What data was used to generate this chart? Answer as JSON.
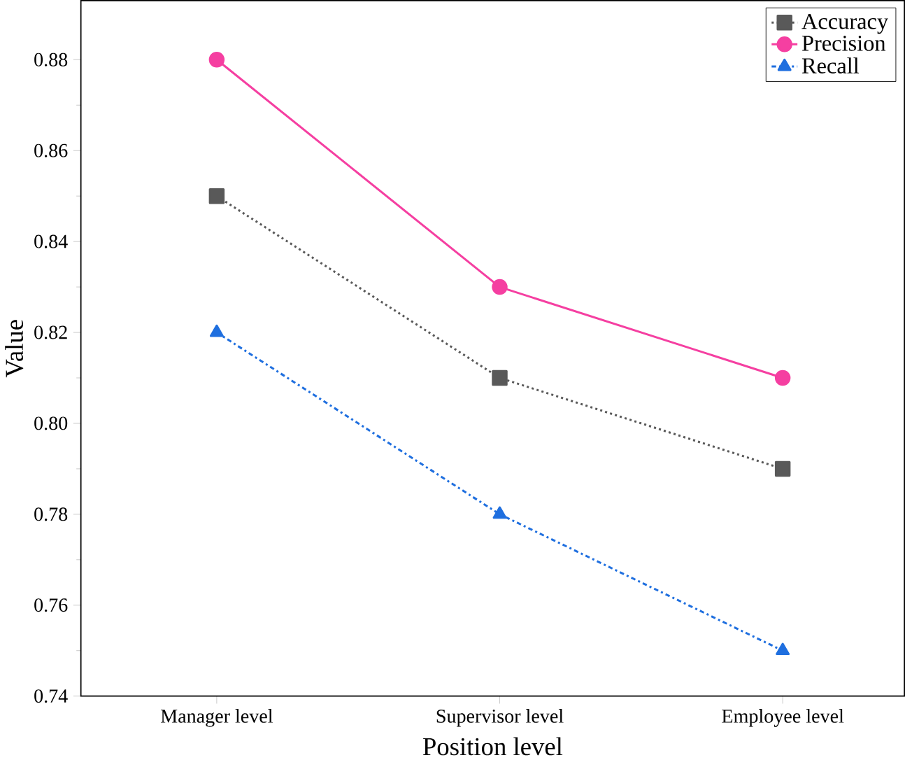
{
  "chart_data": {
    "type": "line",
    "xlabel": "Position level",
    "ylabel": "Value",
    "categories": [
      "Manager level",
      "Supervisor level",
      "Employee level"
    ],
    "series": [
      {
        "name": "Accuracy",
        "color": "#595959",
        "values": [
          0.85,
          0.81,
          0.79
        ],
        "marker": "square",
        "line_style": "dotted"
      },
      {
        "name": "Precision",
        "color": "#f53fa1",
        "values": [
          0.88,
          0.83,
          0.81
        ],
        "marker": "circle",
        "line_style": "solid"
      },
      {
        "name": "Recall",
        "color": "#1f6fdf",
        "values": [
          0.82,
          0.78,
          0.75
        ],
        "marker": "triangle",
        "line_style": "dashdot"
      }
    ],
    "ylim": [
      0.74,
      0.893
    ],
    "yticks": [
      0.74,
      0.76,
      0.78,
      {
        "value": 0.8,
        "label": "0.80"
      },
      0.82,
      0.84,
      0.86,
      0.88
    ],
    "grid": false,
    "legend": "top right"
  }
}
